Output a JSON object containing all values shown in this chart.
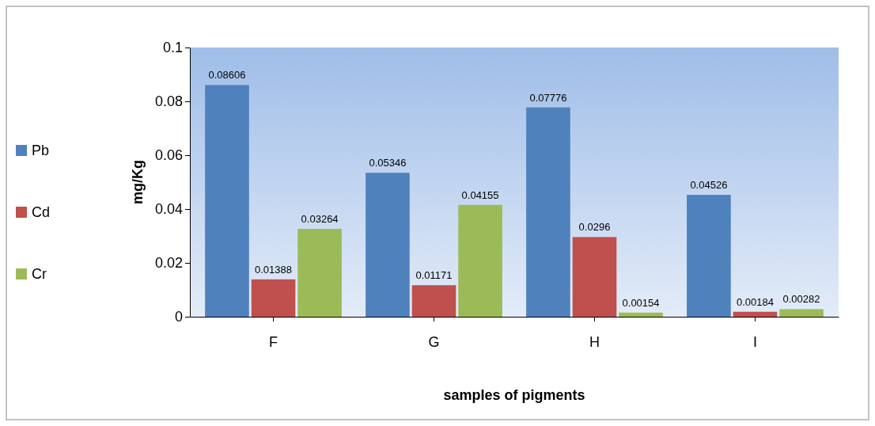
{
  "chart_data": {
    "type": "bar",
    "xlabel": "samples of pigments",
    "ylabel": "mg/Kg",
    "categories": [
      "F",
      "G",
      "H",
      "I"
    ],
    "series": [
      {
        "name": "Pb",
        "color": "#4f81bd",
        "values": [
          0.08606,
          0.05346,
          0.07776,
          0.04526
        ]
      },
      {
        "name": "Cd",
        "color": "#c0504d",
        "values": [
          0.01388,
          0.01171,
          0.0296,
          0.00184
        ]
      },
      {
        "name": "Cr",
        "color": "#9bbb59",
        "values": [
          0.03264,
          0.04155,
          0.00154,
          0.00282
        ]
      }
    ],
    "ylim": [
      0,
      0.1
    ],
    "yticks": [
      0,
      0.02,
      0.04,
      0.06,
      0.08,
      0.1
    ],
    "data_labels": true,
    "legend": "left",
    "grid": false
  }
}
